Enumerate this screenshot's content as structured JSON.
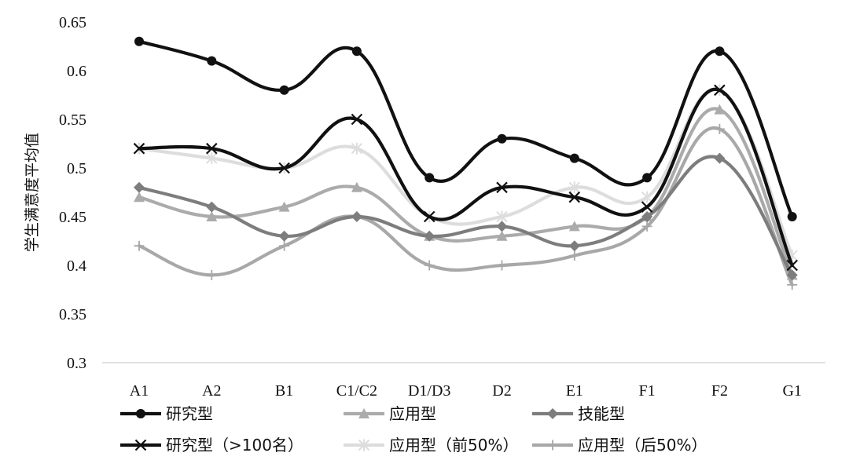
{
  "chart_data": {
    "type": "line",
    "ylabel": "学生满意度平均值",
    "xlabel": "",
    "categories": [
      "A1",
      "A2",
      "B1",
      "C1/C2",
      "D1/D3",
      "D2",
      "E1",
      "F1",
      "F2",
      "G1"
    ],
    "ylim": [
      0.3,
      0.65
    ],
    "yticks": [
      "0.3",
      "0.35",
      "0.4",
      "0.45",
      "0.5",
      "0.55",
      "0.6",
      "0.65"
    ],
    "grid": false,
    "legend_position": "bottom",
    "series": [
      {
        "name": "研究型",
        "color": "#111111",
        "marker": "circle",
        "values": [
          0.63,
          0.61,
          0.58,
          0.62,
          0.49,
          0.53,
          0.51,
          0.49,
          0.62,
          0.45
        ]
      },
      {
        "name": "应用型",
        "color": "#ababab",
        "marker": "triangle",
        "values": [
          0.47,
          0.45,
          0.46,
          0.48,
          0.43,
          0.43,
          0.44,
          0.45,
          0.56,
          0.39
        ]
      },
      {
        "name": "技能型",
        "color": "#7d7d7d",
        "marker": "diamond",
        "values": [
          0.48,
          0.46,
          0.43,
          0.45,
          0.43,
          0.44,
          0.42,
          0.45,
          0.51,
          0.39
        ]
      },
      {
        "name": "研究型（>100名）",
        "color": "#111111",
        "marker": "x",
        "values": [
          0.52,
          0.52,
          0.5,
          0.55,
          0.45,
          0.48,
          0.47,
          0.46,
          0.58,
          0.4
        ]
      },
      {
        "name": "应用型（前50%）",
        "color": "#dddddd",
        "marker": "asterisk",
        "values": [
          0.52,
          0.51,
          0.5,
          0.52,
          0.45,
          0.45,
          0.48,
          0.47,
          0.58,
          0.41
        ]
      },
      {
        "name": "应用型（后50%）",
        "color": "#a8a8a8",
        "marker": "plus",
        "values": [
          0.42,
          0.39,
          0.42,
          0.45,
          0.4,
          0.4,
          0.41,
          0.44,
          0.54,
          0.38
        ]
      }
    ]
  }
}
